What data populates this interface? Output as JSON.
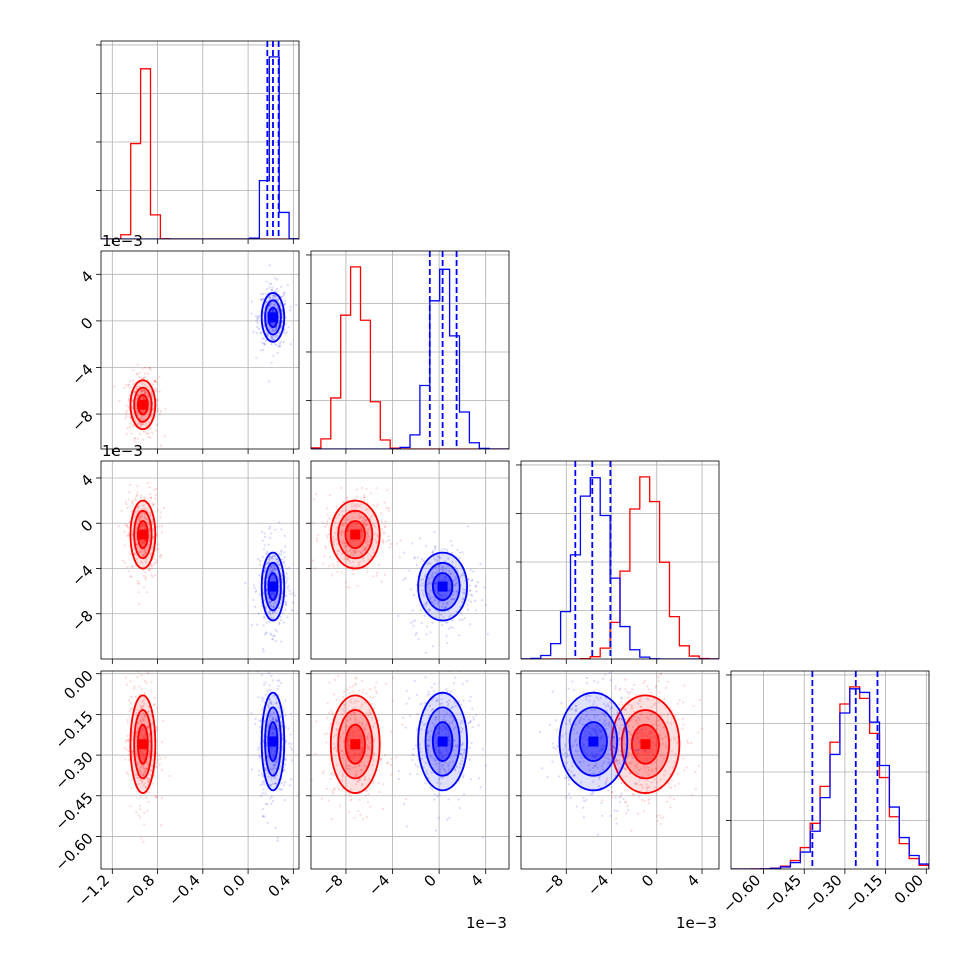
{
  "chart_data": {
    "type": "corner",
    "parameters": 4,
    "colors": {
      "red": "#ff0000",
      "blue": "#0000ff"
    },
    "grid": true,
    "offset_labels": {
      "p2": "1e−3",
      "p3": "1e−3"
    },
    "axes": {
      "p1": {
        "lim": [
          -1.3,
          0.45
        ],
        "ticks": [
          -1.2,
          -0.8,
          -0.4,
          0.0,
          0.4
        ],
        "tick_labels": [
          "−1.2",
          "−0.8",
          "−0.4",
          "0.0",
          "0.4"
        ]
      },
      "p2": {
        "lim": [
          -11,
          6
        ],
        "ticks": [
          -8,
          -4,
          0,
          4
        ],
        "tick_labels": [
          "−8",
          "−4",
          "0",
          "4"
        ]
      },
      "p3": {
        "lim": [
          -12,
          5.5
        ],
        "ticks": [
          -8,
          -4,
          0,
          4
        ],
        "tick_labels": [
          "−8",
          "−4",
          "0",
          "4"
        ]
      },
      "p4": {
        "lim": [
          -0.72,
          0.01
        ],
        "ticks": [
          -0.6,
          -0.45,
          -0.3,
          -0.15,
          0.0
        ],
        "tick_labels": [
          "−0.60",
          "−0.45",
          "−0.30",
          "−0.15",
          "0.00"
        ]
      }
    },
    "series": [
      {
        "color": "red",
        "mean": [
          -0.93,
          -7.2,
          -1.0,
          -0.26
        ],
        "sd": [
          0.055,
          1.05,
          1.5,
          0.09
        ]
      },
      {
        "color": "blue",
        "mean": [
          0.22,
          0.3,
          -5.6,
          -0.25
        ],
        "sd": [
          0.05,
          1.05,
          1.5,
          0.09
        ],
        "quantiles": {
          "p1": [
            0.17,
            0.22,
            0.27
          ],
          "p2": [
            -0.8,
            0.3,
            1.5
          ],
          "p3": [
            -7.2,
            -5.7,
            -4.1
          ],
          "p4": [
            -0.42,
            -0.26,
            -0.18
          ]
        }
      }
    ]
  }
}
